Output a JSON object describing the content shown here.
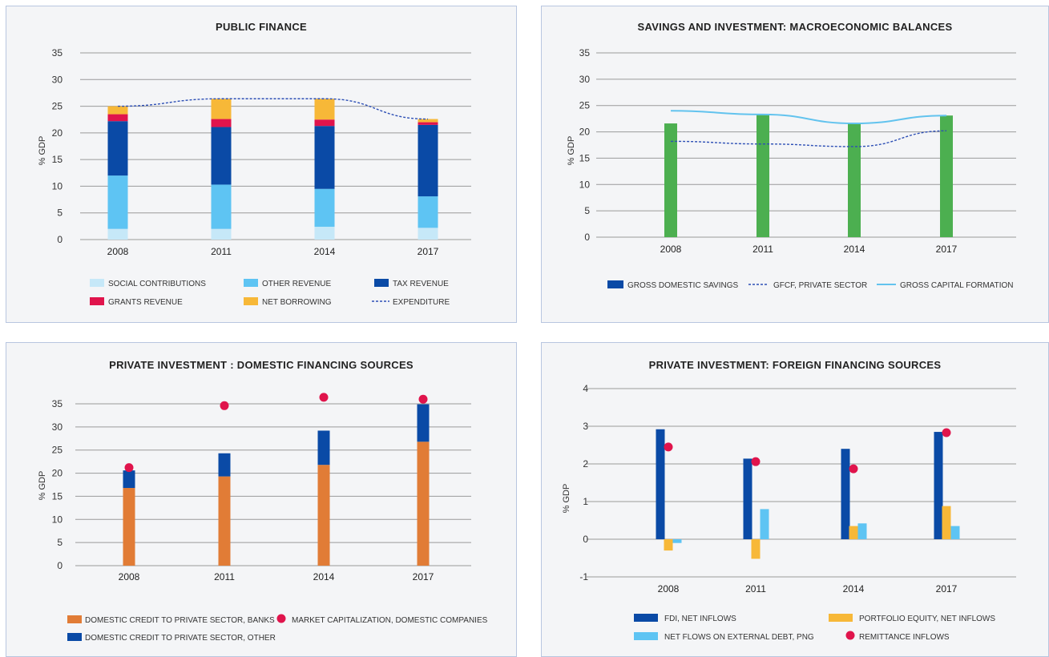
{
  "chart_data": [
    {
      "type": "bar",
      "stacked": true,
      "title": "PUBLIC FINANCE",
      "ylabel": "% GDP",
      "ylim": [
        0,
        35
      ],
      "yticks": [
        0,
        5,
        10,
        15,
        20,
        25,
        30,
        35
      ],
      "categories": [
        "2008",
        "2011",
        "2014",
        "2017"
      ],
      "series": [
        {
          "name": "SOCIAL CONTRIBUTIONS",
          "color": "#c6e8f8",
          "values": [
            2.0,
            2.0,
            2.4,
            2.2
          ]
        },
        {
          "name": "OTHER REVENUE",
          "color": "#5ec4f3",
          "values": [
            10.0,
            8.3,
            7.1,
            5.9
          ]
        },
        {
          "name": "TAX REVENUE",
          "color": "#0a4aa6",
          "values": [
            10.2,
            10.8,
            11.8,
            13.4
          ]
        },
        {
          "name": "GRANTS REVENUE",
          "color": "#e0144c",
          "values": [
            1.3,
            1.5,
            1.2,
            0.5
          ]
        },
        {
          "name": "NET BORROWING",
          "color": "#f7b838",
          "values": [
            1.5,
            3.8,
            3.9,
            0.6
          ]
        }
      ],
      "lines": [
        {
          "name": "EXPENDITURE",
          "color": "#2d4fb5",
          "dashed": true,
          "values": [
            25.0,
            26.4,
            26.4,
            22.6
          ]
        }
      ],
      "legend": "bottom"
    },
    {
      "type": "bar",
      "title": "SAVINGS AND INVESTMENT:  MACROECONOMIC BALANCES",
      "ylabel": "% GDP",
      "ylim": [
        0,
        35
      ],
      "yticks": [
        0,
        5,
        10,
        15,
        20,
        25,
        30,
        35
      ],
      "categories": [
        "2008",
        "2011",
        "2014",
        "2017"
      ],
      "series": [
        {
          "name": "GROSS DOMESTIC SAVINGS",
          "color": "#0a4aa6",
          "bar_color": "#4caf50",
          "values": [
            21.6,
            23.2,
            21.6,
            23.1
          ]
        }
      ],
      "lines": [
        {
          "name": "GFCF, PRIVATE SECTOR",
          "color": "#2d4fb5",
          "dashed": true,
          "values": [
            18.2,
            17.7,
            17.2,
            20.2
          ]
        },
        {
          "name": "GROSS CAPITAL FORMATION",
          "color": "#62c3ee",
          "dashed": false,
          "values": [
            24.0,
            23.3,
            21.6,
            23.1
          ]
        }
      ],
      "legend": "bottom"
    },
    {
      "type": "bar",
      "stacked": true,
      "title": "PRIVATE INVESTMENT : DOMESTIC FINANCING SOURCES",
      "ylabel": "% GDP",
      "ylim": [
        0,
        35
      ],
      "yticks": [
        0,
        5,
        10,
        15,
        20,
        25,
        30,
        35
      ],
      "categories": [
        "2008",
        "2011",
        "2014",
        "2017"
      ],
      "series": [
        {
          "name": "DOMESTIC CREDIT TO PRIVATE SECTOR, BANKS",
          "color": "#e17c36",
          "values": [
            16.8,
            19.3,
            21.8,
            26.8
          ]
        },
        {
          "name": "DOMESTIC CREDIT TO PRIVATE SECTOR, OTHER",
          "color": "#0a4aa6",
          "values": [
            3.8,
            5.0,
            7.4,
            8.1
          ]
        }
      ],
      "points": [
        {
          "name": "MARKET CAPITALIZATION, DOMESTIC COMPANIES",
          "color": "#e0144c",
          "values": [
            21.2,
            34.6,
            36.4,
            36.0
          ]
        }
      ],
      "legend": "bottom"
    },
    {
      "type": "bar",
      "title": "PRIVATE INVESTMENT: FOREIGN FINANCING SOURCES",
      "ylabel": "% GDP",
      "ylim": [
        -1,
        4
      ],
      "yticks": [
        -1,
        0,
        1,
        2,
        3,
        4
      ],
      "categories": [
        "2008",
        "2011",
        "2014",
        "2017"
      ],
      "series": [
        {
          "name": "FDI, NET INFLOWS",
          "color": "#0a4aa6",
          "values": [
            2.92,
            2.14,
            2.4,
            2.85
          ]
        },
        {
          "name": "PORTFOLIO EQUITY, NET INFLOWS",
          "color": "#f7b838",
          "values": [
            -0.3,
            -0.52,
            0.35,
            0.88
          ]
        },
        {
          "name": "NET FLOWS ON EXTERNAL DEBT, PNG",
          "color": "#5ec4f3",
          "values": [
            -0.1,
            0.8,
            0.42,
            0.35
          ]
        }
      ],
      "points": [
        {
          "name": "REMITTANCE INFLOWS",
          "color": "#e0144c",
          "values": [
            2.45,
            2.06,
            1.87,
            2.83
          ]
        }
      ],
      "legend": "bottom"
    }
  ]
}
